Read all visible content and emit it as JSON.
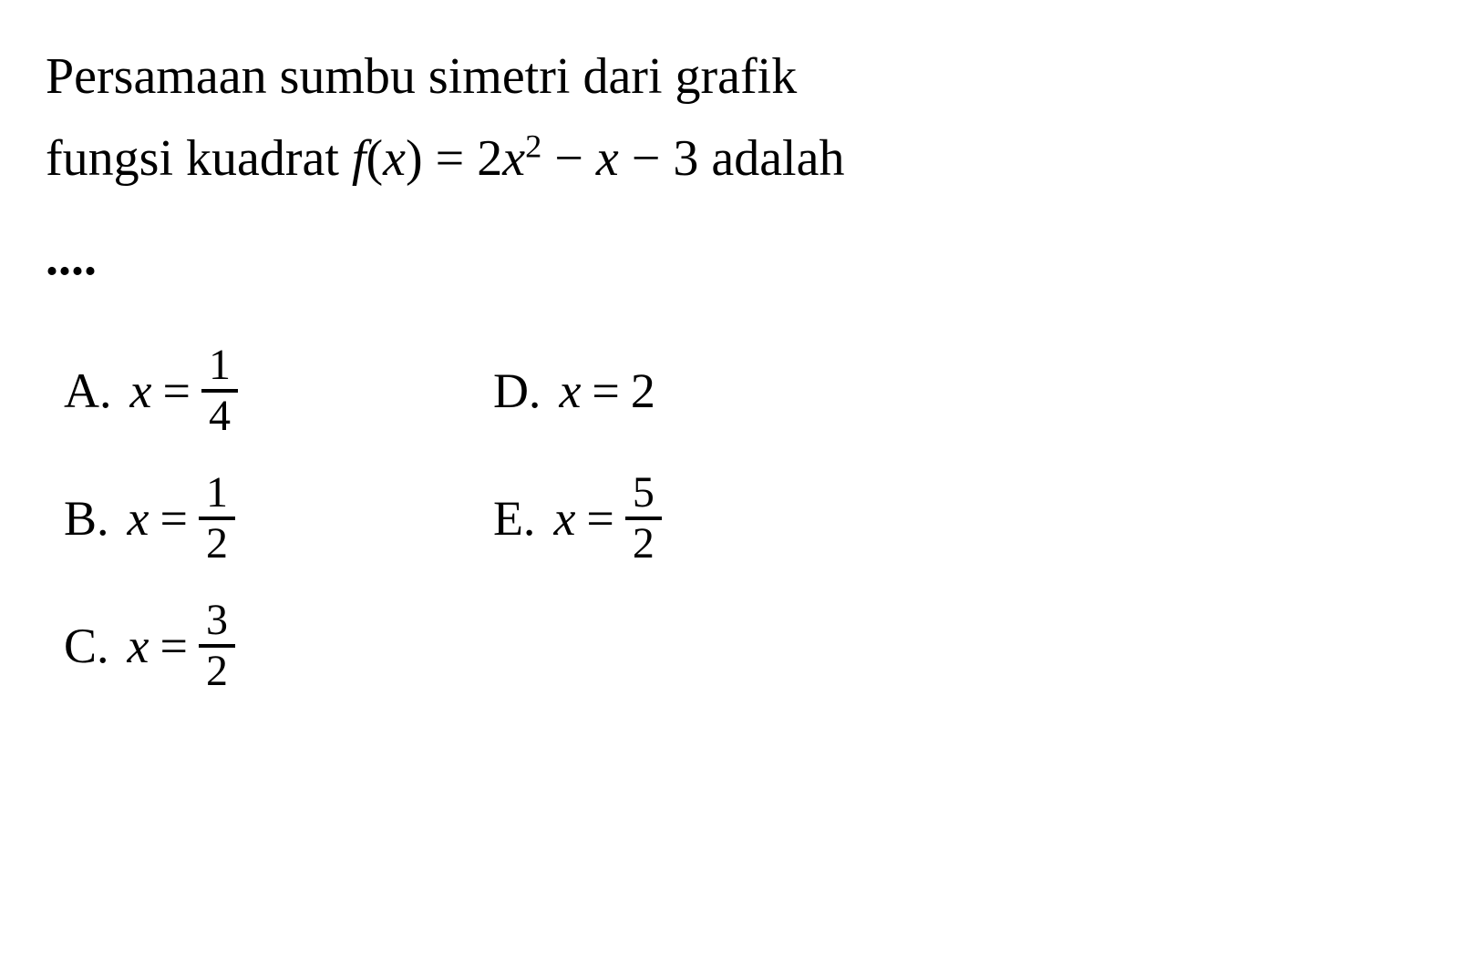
{
  "question": {
    "line1": "Persamaan sumbu simetri dari grafik",
    "line2_prefix": "fungsi kuadrat ",
    "func_name": "f",
    "func_open": "(",
    "func_var": "x",
    "func_close": ") = 2",
    "func_var2": "x",
    "func_exp": "2",
    "func_mid": " − ",
    "func_var3": "x",
    "func_suffix": " − 3 adalah",
    "dots": "...."
  },
  "options": {
    "a": {
      "label": "A.",
      "var": "x",
      "eq": "=",
      "num": "1",
      "den": "4"
    },
    "b": {
      "label": "B.",
      "var": "x",
      "eq": "=",
      "num": "1",
      "den": "2"
    },
    "c": {
      "label": "C.",
      "var": "x",
      "eq": "=",
      "num": "3",
      "den": "2"
    },
    "d": {
      "label": "D.",
      "var": "x",
      "eq": "=",
      "value": "2"
    },
    "e": {
      "label": "E.",
      "var": "x",
      "eq": "=",
      "num": "5",
      "den": "2"
    }
  },
  "styling": {
    "background_color": "#ffffff",
    "text_color": "#000000",
    "font_family": "Comic Sans MS",
    "question_fontsize": 56,
    "option_fontsize": 54,
    "fraction_fontsize": 48,
    "fraction_border_width": 4
  }
}
